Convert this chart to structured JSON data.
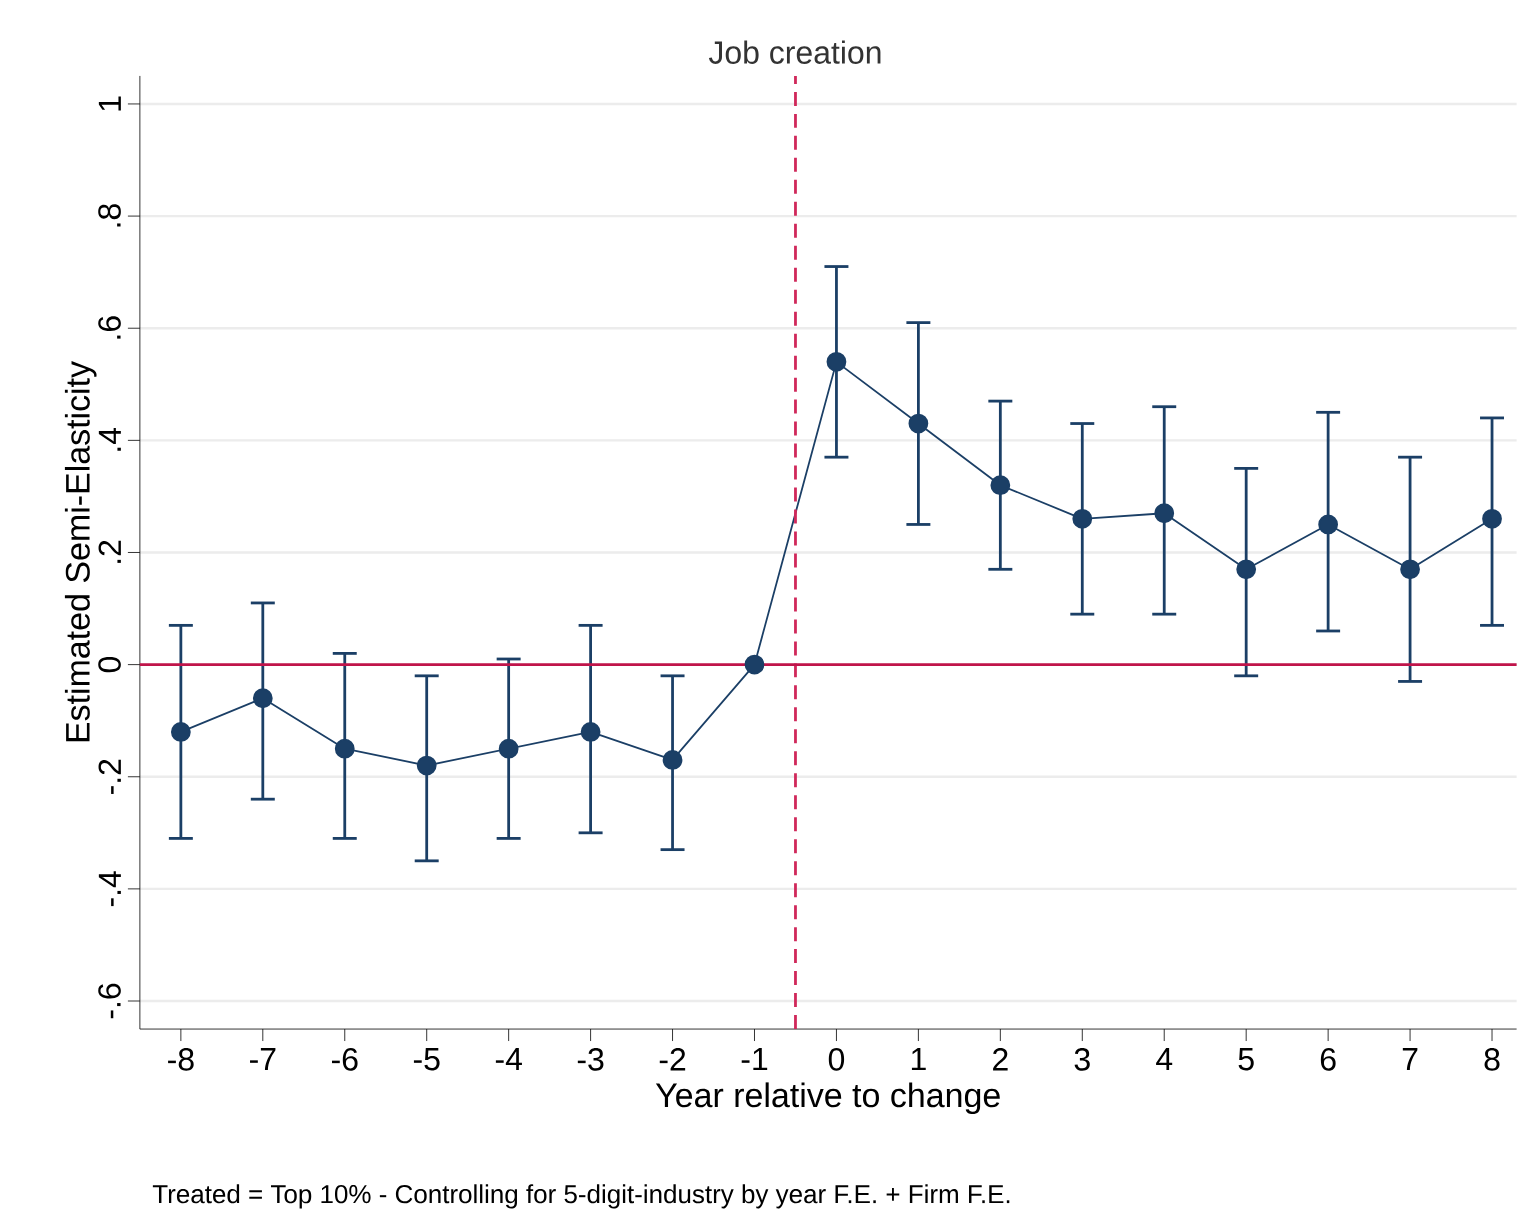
{
  "chart_data": {
    "type": "line",
    "xlabel": "Year relative to change",
    "ylabel": "Estimated Semi-Elasticity",
    "x": [
      -8,
      -7,
      -6,
      -5,
      -4,
      -3,
      -2,
      -1,
      0,
      1,
      2,
      3,
      4,
      5,
      6,
      7,
      8
    ],
    "series": [
      {
        "color": "#1b3f66",
        "values": [
          -0.12,
          -0.06,
          -0.15,
          -0.18,
          -0.15,
          -0.12,
          -0.17,
          0,
          0.54,
          0.43,
          0.32,
          0.26,
          0.27,
          0.17,
          0.25,
          0.17,
          0.26
        ],
        "errors": [
          [
            -0.31,
            0.07
          ],
          [
            -0.24,
            0.11
          ],
          [
            -0.31,
            0.02
          ],
          [
            -0.35,
            -0.02
          ],
          [
            -0.31,
            0.01
          ],
          [
            -0.3,
            0.07
          ],
          [
            -0.33,
            -0.02
          ],
          null,
          [
            0.37,
            0.71
          ],
          [
            0.25,
            0.61
          ],
          [
            0.17,
            0.47
          ],
          [
            0.09,
            0.43
          ],
          [
            0.09,
            0.46
          ],
          [
            -0.02,
            0.35
          ],
          [
            0.06,
            0.45
          ],
          [
            -0.03,
            0.37
          ],
          [
            0.07,
            0.44
          ]
        ]
      }
    ],
    "xlim": [
      -8.5,
      8.3
    ],
    "ylim": [
      -0.65,
      1.05
    ],
    "xticks": [
      -8,
      -7,
      -6,
      -5,
      -4,
      -3,
      -2,
      -1,
      0,
      1,
      2,
      3,
      4,
      5,
      6,
      7,
      8
    ],
    "yticks": [
      {
        "value": -0.6,
        "label": "-.6"
      },
      {
        "value": -0.4,
        "label": "-.4"
      },
      {
        "value": -0.2,
        "label": "-.2"
      },
      0,
      {
        "value": 0.2,
        "label": ".2"
      },
      {
        "value": 0.4,
        "label": ".4"
      },
      {
        "value": 0.6,
        "label": ".6"
      },
      {
        "value": 0.8,
        "label": ".8"
      },
      1
    ],
    "grid": "y",
    "marker": "circle",
    "line_style": "solid",
    "ref_lines": [
      {
        "axis": "x",
        "value": -0.5,
        "label": "Job creation",
        "color": "#d0285a",
        "line_style": "dashed"
      },
      {
        "axis": "y",
        "value": 0,
        "color": "#c0144a",
        "line_style": "solid"
      }
    ],
    "annotations": [
      "Treated = Top 10% - Controlling for 5-digit-industry by year F.E. + Firm  F.E."
    ]
  }
}
